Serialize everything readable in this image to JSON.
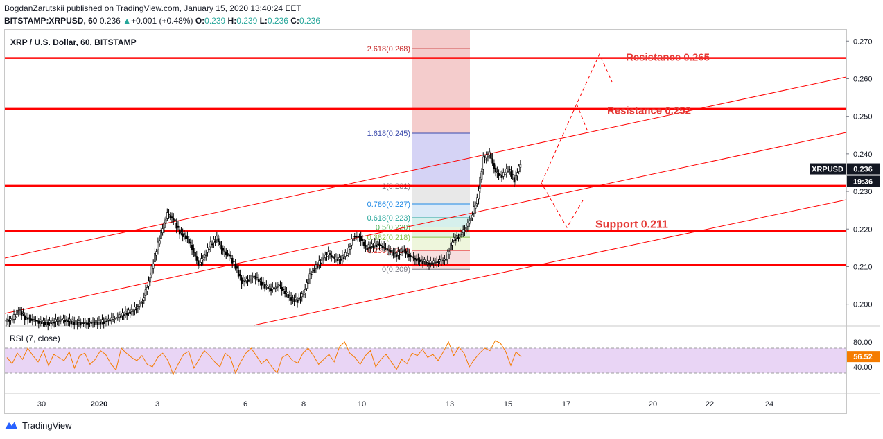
{
  "header": {
    "line1": "BogdanZarutskii published on TradingView.com, January 15, 2020 13:40:24 EET",
    "symbol": "BITSTAMP:XRPUSD, 60",
    "last": "0.236",
    "change": "+0.001 (+0.48%)",
    "o_label": "O:",
    "o": "0.239",
    "h_label": "H:",
    "h": "0.239",
    "l_label": "L:",
    "l": "0.236",
    "c_label": "C:",
    "c": "0.236"
  },
  "footer": {
    "brand": "TradingView"
  },
  "colors": {
    "support_resistance": "#ff0000",
    "channel": "#ff0000",
    "candle": "#000000",
    "rsi_line": "#f57c00",
    "rsi_band": "#e9d5f5",
    "price_label_bg": "#131722",
    "rsi_label_bg": "#f57c00"
  },
  "chart_data": {
    "type": "candlestick",
    "title": "XRP / U.S. Dollar, 60, BITSTAMP",
    "y_ticks": [
      "0.270",
      "0.260",
      "0.250",
      "0.240",
      "0.230",
      "0.220",
      "0.210",
      "0.200"
    ],
    "ylim": [
      0.1944,
      0.273
    ],
    "x_ticks": [
      "30",
      "2020",
      "3",
      "6",
      "8",
      "10",
      "13",
      "15",
      "17",
      "20",
      "22",
      "24"
    ],
    "current_price": {
      "symbol": "XRPUSD",
      "value": "0.236",
      "countdown": "19:36"
    },
    "horizontal_levels": [
      0.2655,
      0.252,
      0.2315,
      0.2195,
      0.2105
    ],
    "annotations": [
      {
        "text": "Resistance 0.265",
        "price": 0.2657
      },
      {
        "text": "Resistance 0.252",
        "price": 0.2515
      },
      {
        "text": "Support 0.211",
        "price": 0.2212
      }
    ],
    "fibonacci": {
      "levels": [
        {
          "label": "2.618(0.268)",
          "price": 0.268,
          "color": "#c62828"
        },
        {
          "label": "1.618(0.245)",
          "price": 0.2455,
          "color": "#3949ab"
        },
        {
          "label": "1(0.231)",
          "price": 0.2315,
          "color": "#787b86"
        },
        {
          "label": "0.786(0.227)",
          "price": 0.2267,
          "color": "#1e88e5"
        },
        {
          "label": "0.618(0.223)",
          "price": 0.223,
          "color": "#26a69a"
        },
        {
          "label": "0.5(0.220)",
          "price": 0.2205,
          "color": "#4caf50"
        },
        {
          "label": "0.382(0.218)",
          "price": 0.2178,
          "color": "#8bc34a"
        },
        {
          "label": "0.236(0.214)",
          "price": 0.2143,
          "color": "#e53935"
        },
        {
          "label": "0(0.209)",
          "price": 0.2093,
          "color": "#787b86"
        }
      ]
    },
    "channel_lines": [
      {
        "p1": [
          "29",
          0.2105
        ],
        "p2": [
          "end",
          0.259
        ]
      },
      {
        "p1": [
          "29",
          0.1975
        ],
        "p2": [
          "end",
          0.2445
        ]
      },
      {
        "p1": [
          "5",
          0.1945
        ],
        "p2": [
          "end",
          0.2265
        ]
      }
    ],
    "projection_path": [
      [
        0.2315,
        ""
      ],
      [
        0.221,
        ""
      ],
      [
        0.227,
        ""
      ]
    ],
    "price_path_approx": [
      [
        0.1955,
        0.196,
        0.1985,
        0.1965,
        0.196,
        0.1955,
        0.1952,
        0.195,
        0.1955,
        0.1958,
        0.1955,
        0.1952,
        0.195,
        0.195,
        0.1951,
        0.1952,
        0.1955,
        0.196,
        0.1965,
        0.1975,
        0.198,
        0.199,
        0.201,
        0.206,
        0.213,
        0.219,
        0.224,
        0.2225,
        0.219,
        0.218,
        0.215,
        0.2105,
        0.213,
        0.216,
        0.2175,
        0.214,
        0.213,
        0.21,
        0.206,
        0.2065,
        0.2075,
        0.206,
        0.2045,
        0.204,
        0.205,
        0.203,
        0.2015,
        0.201,
        0.203,
        0.208,
        0.21,
        0.212,
        0.2135,
        0.212,
        0.212,
        0.2135,
        0.218,
        0.218,
        0.215,
        0.2155,
        0.216,
        0.215,
        0.214,
        0.213,
        0.2145,
        0.213,
        0.212,
        0.2115,
        0.211,
        0.211,
        0.2115,
        0.212,
        0.217,
        0.218,
        0.22,
        0.223,
        0.228,
        0.2385,
        0.24,
        0.235,
        0.234,
        0.236,
        0.233,
        0.2375
      ]
    ],
    "rsi": {
      "label": "RSI (7, close)",
      "ticks": [
        "80.00",
        "40.00"
      ],
      "band": [
        30,
        70
      ],
      "ylim": [
        0,
        100
      ],
      "current": "56.52",
      "values_approx": [
        55,
        45,
        62,
        52,
        70,
        58,
        48,
        66,
        42,
        60,
        55,
        50,
        64,
        38,
        58,
        62,
        44,
        52,
        66,
        60,
        45,
        35,
        70,
        62,
        55,
        50,
        58,
        44,
        40,
        55,
        62,
        50,
        28,
        45,
        60,
        65,
        38,
        52,
        66,
        58,
        48,
        40,
        62,
        55,
        30,
        48,
        62,
        70,
        58,
        45,
        52,
        40,
        30,
        55,
        60,
        50,
        46,
        62,
        70,
        58,
        44,
        52,
        60,
        48,
        72,
        80,
        62,
        55,
        44,
        58,
        66,
        40,
        52,
        60,
        48,
        36,
        52,
        45,
        62,
        58,
        68,
        55,
        60,
        50,
        64,
        80,
        58,
        72,
        62,
        40,
        52,
        62,
        70,
        66,
        82,
        78,
        65,
        42,
        64,
        56
      ]
    }
  }
}
